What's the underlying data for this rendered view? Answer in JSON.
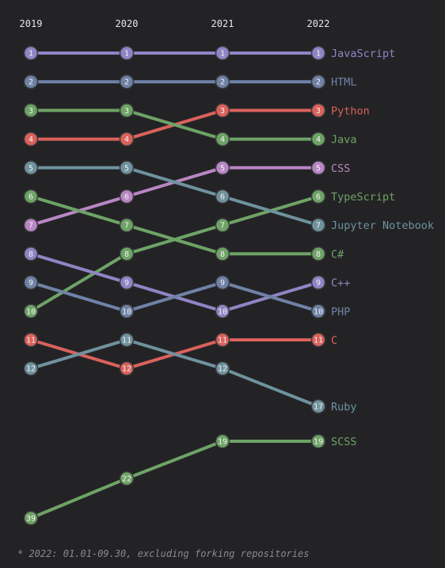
{
  "chart_data": {
    "type": "line",
    "chart_kind": "bump-ranking",
    "x": [
      "2019",
      "2020",
      "2021",
      "2022"
    ],
    "y_inverted": true,
    "series": [
      {
        "name": "JavaScript",
        "values": [
          1,
          1,
          1,
          1
        ],
        "color": "#8f85c4"
      },
      {
        "name": "HTML",
        "values": [
          2,
          2,
          2,
          2
        ],
        "color": "#6f82a6"
      },
      {
        "name": "Python",
        "values": [
          4,
          4,
          3,
          3
        ],
        "color": "#d9625b"
      },
      {
        "name": "Java",
        "values": [
          3,
          3,
          4,
          4
        ],
        "color": "#6ea366"
      },
      {
        "name": "CSS",
        "values": [
          7,
          6,
          5,
          5
        ],
        "color": "#b986c4"
      },
      {
        "name": "TypeScript",
        "values": [
          10,
          8,
          7,
          6
        ],
        "color": "#6ea366"
      },
      {
        "name": "Jupyter Notebook",
        "values": [
          5,
          5,
          6,
          7
        ],
        "color": "#6f929e"
      },
      {
        "name": "C#",
        "values": [
          6,
          7,
          8,
          8
        ],
        "color": "#6ea366"
      },
      {
        "name": "C++",
        "values": [
          8,
          9,
          10,
          9
        ],
        "color": "#8f85c4"
      },
      {
        "name": "PHP",
        "values": [
          9,
          10,
          9,
          10
        ],
        "color": "#6f82a6"
      },
      {
        "name": "C",
        "values": [
          11,
          12,
          11,
          11
        ],
        "color": "#d9625b"
      },
      {
        "name": "Ruby",
        "values": [
          12,
          11,
          12,
          17
        ],
        "color": "#6f929e"
      },
      {
        "name": "SCSS",
        "values": [
          39,
          22,
          19,
          19
        ],
        "color": "#6ea366"
      }
    ],
    "legend": "labels at right end of lines",
    "grid": false
  },
  "footnote": "* 2022: 01.01-09.30, excluding forking repositories",
  "colors": {
    "background": "#232326",
    "axis_text": "#e6e6e6",
    "node_text": "#f2f2f2",
    "footnote_text": "#8a8a8e"
  }
}
